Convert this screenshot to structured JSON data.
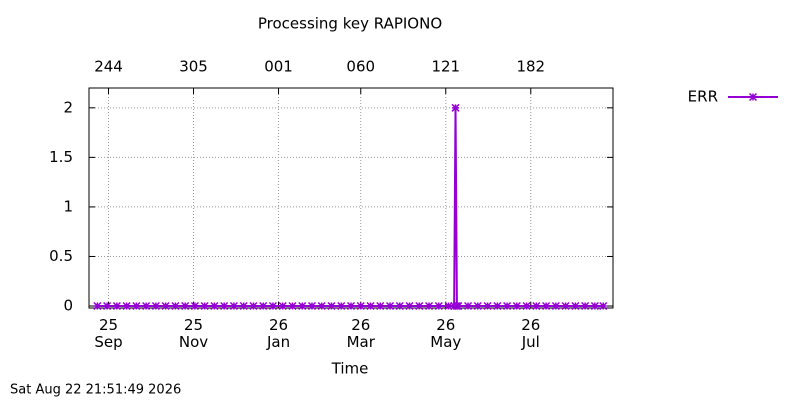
{
  "chart_data": {
    "type": "line",
    "title": "Processing key RAPIONO",
    "xlabel": "Time",
    "footer": "Sat Aug 22 21:51:49 2026",
    "xlim": [
      "2025-08-18",
      "2026-08-29"
    ],
    "xticks": [
      {
        "value": "2025-09-01",
        "label": "25\nSep"
      },
      {
        "value": "2025-11-01",
        "label": "25\nNov"
      },
      {
        "value": "2026-01-01",
        "label": "26\nJan"
      },
      {
        "value": "2026-03-01",
        "label": "26\nMar"
      },
      {
        "value": "2026-05-01",
        "label": "26\nMay"
      },
      {
        "value": "2026-07-01",
        "label": "26\nJul"
      }
    ],
    "x2ticks": [
      {
        "value": "2025-09-01",
        "label": "244"
      },
      {
        "value": "2025-11-01",
        "label": "305"
      },
      {
        "value": "2026-01-01",
        "label": "001"
      },
      {
        "value": "2026-03-01",
        "label": "060"
      },
      {
        "value": "2026-05-01",
        "label": "121"
      },
      {
        "value": "2026-07-01",
        "label": "182"
      }
    ],
    "ylim": [
      -0.02,
      2.2
    ],
    "yticks": [
      0,
      0.5,
      1,
      1.5,
      2
    ],
    "grid": true,
    "legend": "outside-top-right",
    "x": [
      "2025-08-24",
      "2025-08-31",
      "2025-09-07",
      "2025-09-14",
      "2025-09-21",
      "2025-09-28",
      "2025-10-05",
      "2025-10-12",
      "2025-10-19",
      "2025-10-26",
      "2025-11-02",
      "2025-11-09",
      "2025-11-16",
      "2025-11-23",
      "2025-11-30",
      "2025-12-07",
      "2025-12-14",
      "2025-12-21",
      "2025-12-28",
      "2026-01-04",
      "2026-01-11",
      "2026-01-18",
      "2026-01-25",
      "2026-02-01",
      "2026-02-08",
      "2026-02-15",
      "2026-02-22",
      "2026-03-01",
      "2026-03-08",
      "2026-03-15",
      "2026-03-22",
      "2026-03-29",
      "2026-04-05",
      "2026-04-12",
      "2026-04-19",
      "2026-04-26",
      "2026-05-03",
      "2026-05-07",
      "2026-05-08",
      "2026-05-09",
      "2026-05-10",
      "2026-05-17",
      "2026-05-24",
      "2026-05-31",
      "2026-06-07",
      "2026-06-14",
      "2026-06-21",
      "2026-06-28",
      "2026-07-05",
      "2026-07-12",
      "2026-07-19",
      "2026-07-26",
      "2026-08-02",
      "2026-08-09",
      "2026-08-16",
      "2026-08-22"
    ],
    "series": [
      {
        "name": "ERR",
        "color": "#9400d3",
        "values": [
          0,
          0,
          0,
          0,
          0,
          0,
          0,
          0,
          0,
          0,
          0,
          0,
          0,
          0,
          0,
          0,
          0,
          0,
          0,
          0,
          0,
          0,
          0,
          0,
          0,
          0,
          0,
          0,
          0,
          0,
          0,
          0,
          0,
          0,
          0,
          0,
          0,
          0,
          2,
          0,
          0,
          0,
          0,
          0,
          0,
          0,
          0,
          0,
          0,
          0,
          0,
          0,
          0,
          0,
          0,
          0
        ]
      }
    ]
  }
}
